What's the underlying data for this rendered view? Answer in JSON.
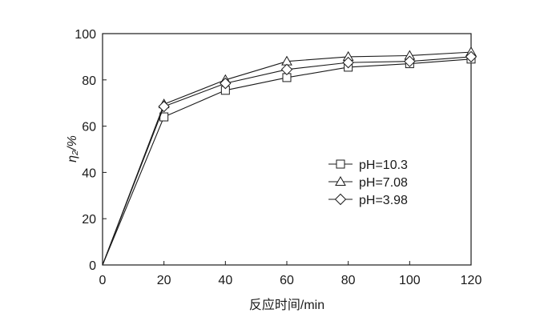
{
  "chart_data": {
    "type": "line",
    "x": [
      0,
      20,
      40,
      60,
      80,
      100,
      120
    ],
    "xlabel": "反应时间/min",
    "ylabel": "η₂/%",
    "xlim": [
      0,
      120
    ],
    "ylim": [
      0,
      100
    ],
    "xticks": [
      0,
      20,
      40,
      60,
      80,
      100,
      120
    ],
    "yticks": [
      0,
      20,
      40,
      60,
      80,
      100
    ],
    "grid": false,
    "legend_position": "center-right",
    "series": [
      {
        "name": "pH=10.3",
        "marker": "square",
        "values": [
          0,
          64,
          75.5,
          81,
          85.5,
          87,
          89
        ]
      },
      {
        "name": "pH=7.08",
        "marker": "triangle",
        "values": [
          0,
          69.5,
          80,
          88,
          90,
          90.5,
          92
        ]
      },
      {
        "name": "pH=3.98",
        "marker": "diamond",
        "values": [
          0,
          68.5,
          78.5,
          84.5,
          87.5,
          88,
          90
        ]
      }
    ],
    "colors": {
      "line": "#1a1a1a",
      "marker_fill": "#ffffff"
    }
  }
}
